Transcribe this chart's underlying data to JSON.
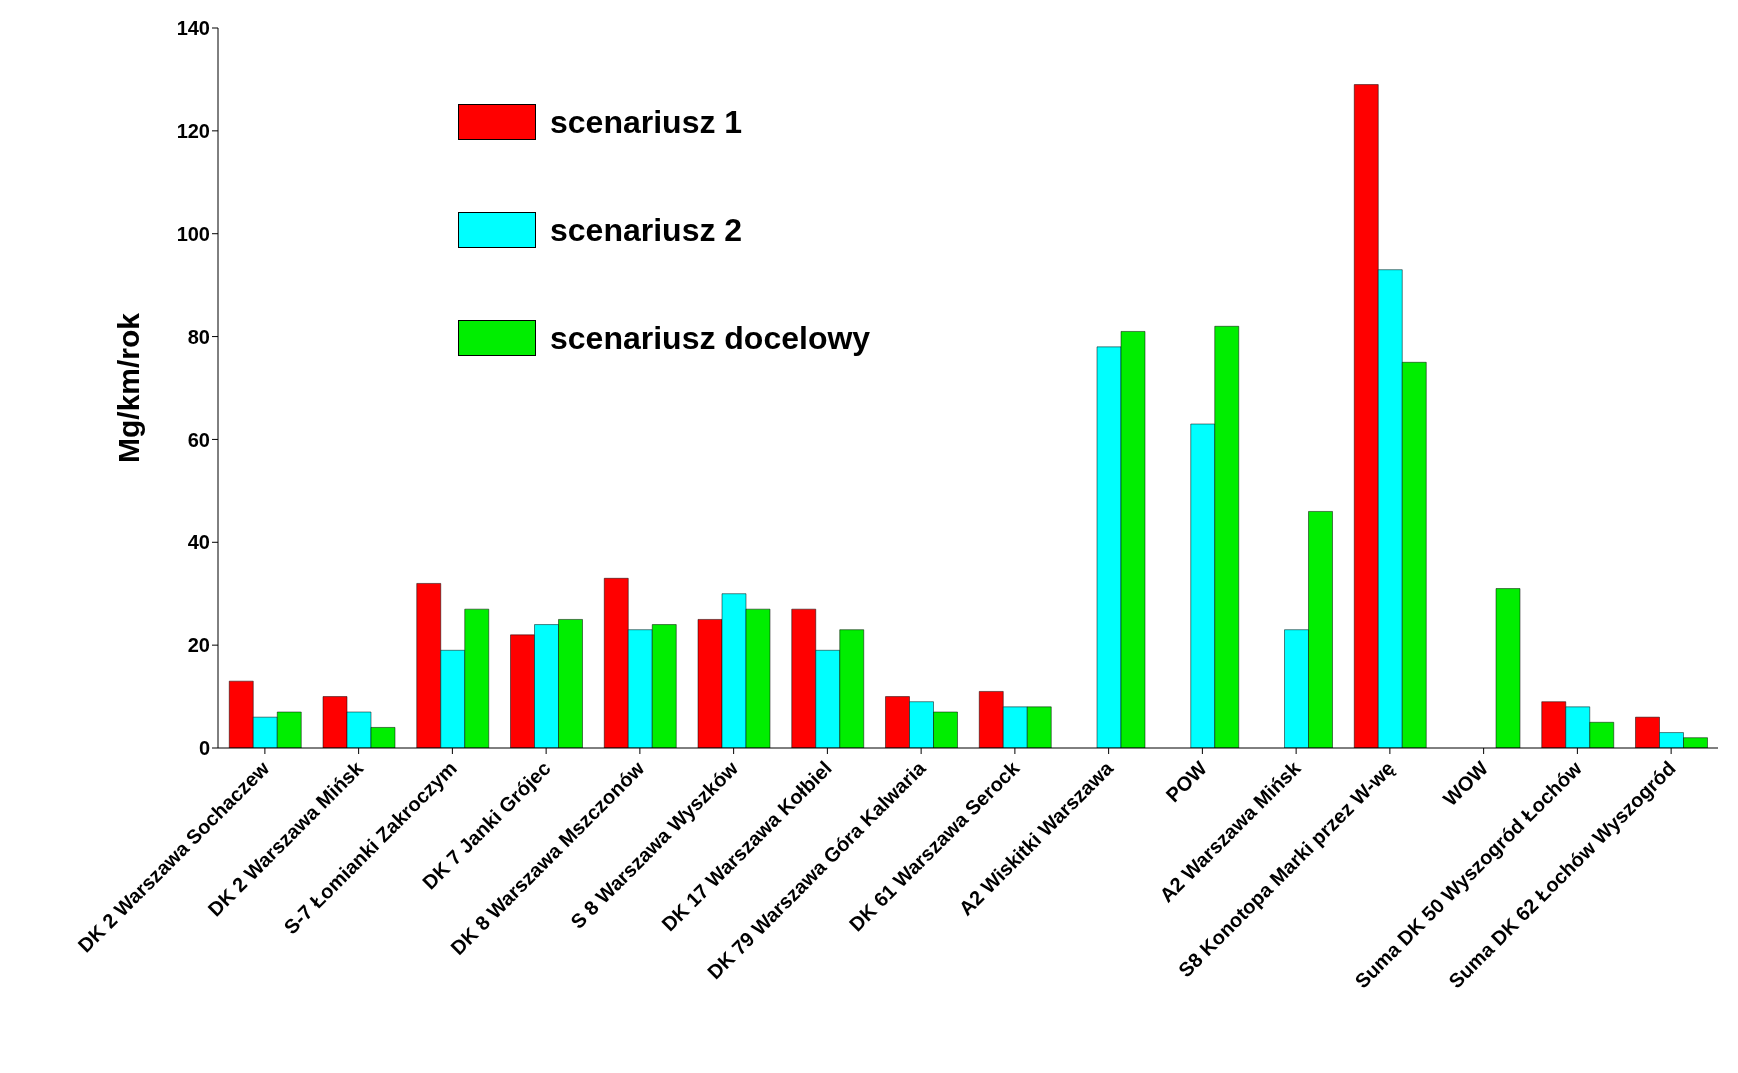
{
  "chart_data": {
    "type": "bar",
    "ylabel": "Mg/km/rok",
    "categories": [
      "DK 2 Warszawa Sochaczew",
      "DK 2 Warszawa Mińsk",
      "S-7 Łomianki Zakroczym",
      "DK 7 Janki Grójec",
      "DK 8 Warszawa Mszczonów",
      "S 8 Warszawa Wyszków",
      "DK 17 Warszawa Kołbiel",
      "DK 79 Warszawa Góra Kalwaria",
      "DK 61 Warszawa Serock",
      "A2 Wiskitki Warszawa",
      "POW",
      "A2 Warszawa Mińsk",
      "S8 Konotopa Marki przez W-wę",
      "WOW",
      "Suma DK 50 Wyszogród Łochów",
      "Suma DK 62 Łochów Wyszogród"
    ],
    "series": [
      {
        "name": "scenariusz 1",
        "color": "#ff0000",
        "values": [
          13,
          10,
          32,
          22,
          33,
          25,
          27,
          10,
          11,
          null,
          null,
          null,
          129,
          null,
          9,
          6
        ]
      },
      {
        "name": "scenariusz 2",
        "color": "#00ffff",
        "values": [
          6,
          7,
          19,
          24,
          23,
          30,
          19,
          9,
          8,
          78,
          63,
          23,
          93,
          null,
          8,
          3
        ]
      },
      {
        "name": "scenariusz docelowy",
        "color": "#00ee00",
        "values": [
          7,
          4,
          27,
          25,
          24,
          27,
          23,
          7,
          8,
          81,
          82,
          46,
          75,
          31,
          5,
          2
        ]
      }
    ],
    "ylim": [
      0,
      140
    ],
    "yticks": [
      0,
      20,
      40,
      60,
      80,
      100,
      120,
      140
    ],
    "grid": false,
    "legend": "top left"
  }
}
